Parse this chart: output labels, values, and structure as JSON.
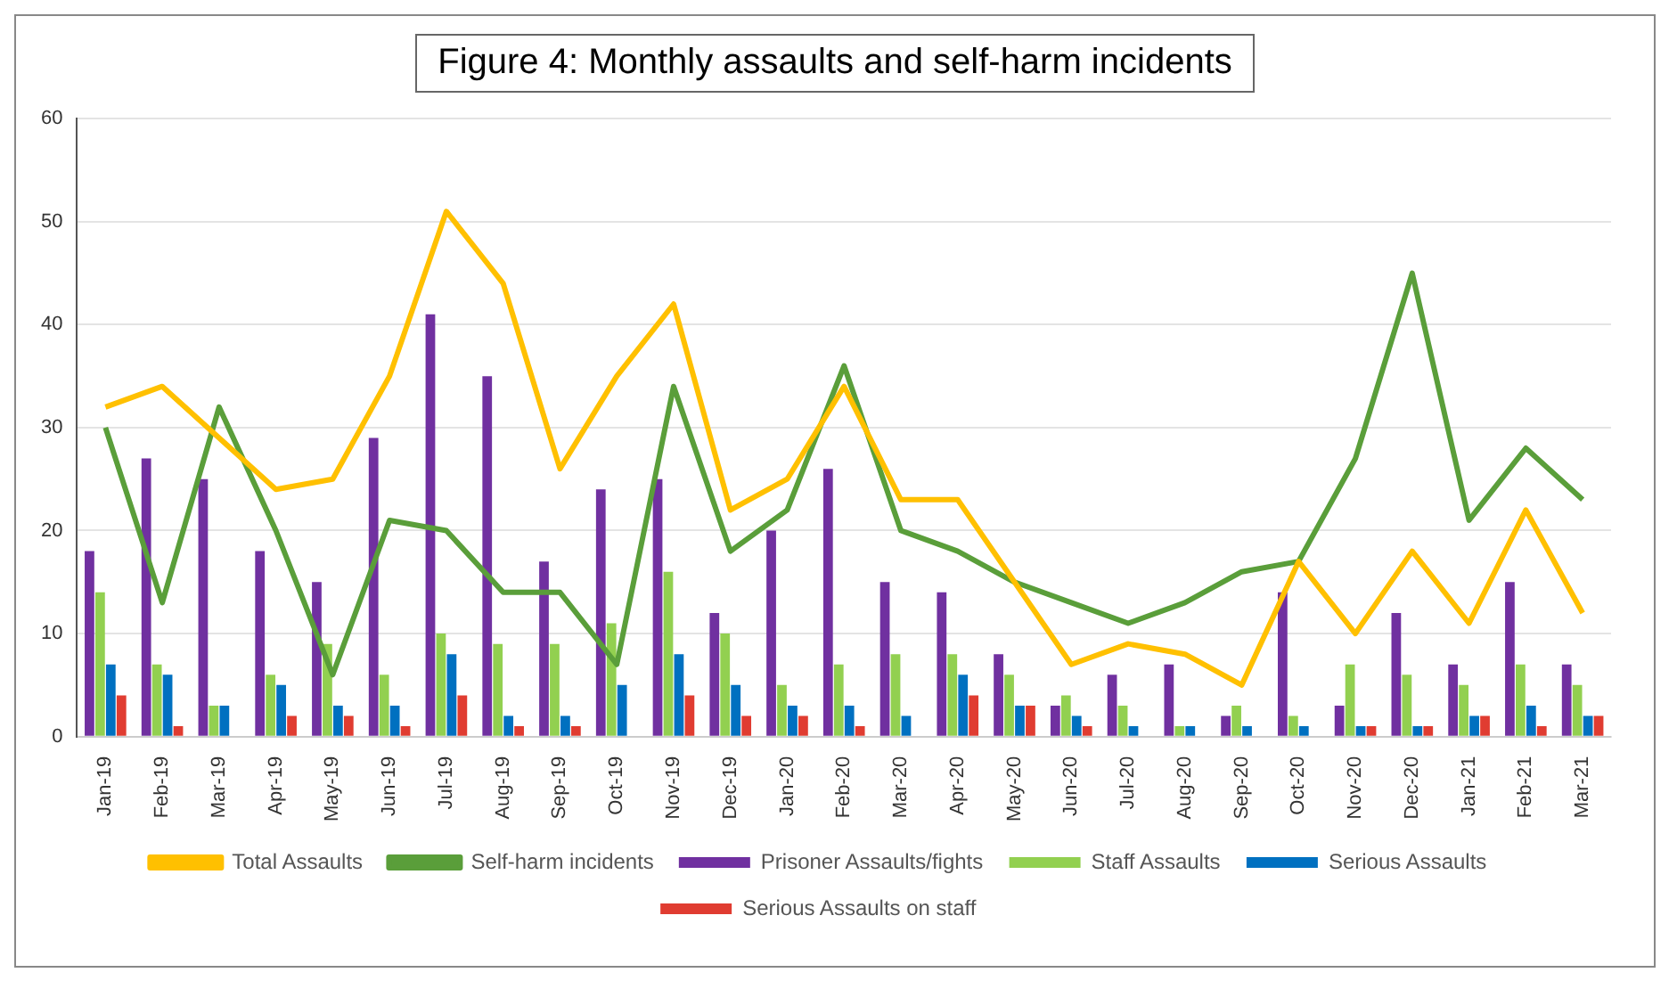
{
  "chart_data": {
    "type": "bar",
    "title": "Figure 4: Monthly assaults and self-harm incidents",
    "categories": [
      "Jan-19",
      "Feb-19",
      "Mar-19",
      "Apr-19",
      "May-19",
      "Jun-19",
      "Jul-19",
      "Aug-19",
      "Sep-19",
      "Oct-19",
      "Nov-19",
      "Dec-19",
      "Jan-20",
      "Feb-20",
      "Mar-20",
      "Apr-20",
      "May-20",
      "Jun-20",
      "Jul-20",
      "Aug-20",
      "Sep-20",
      "Oct-20",
      "Nov-20",
      "Dec-20",
      "Jan-21",
      "Feb-21",
      "Mar-21"
    ],
    "series": [
      {
        "name": "Prisoner Assaults/fights",
        "color": "#7030a0",
        "values": [
          18,
          27,
          25,
          18,
          15,
          29,
          41,
          35,
          17,
          24,
          25,
          12,
          20,
          26,
          15,
          14,
          8,
          3,
          6,
          7,
          2,
          14,
          3,
          12,
          7,
          15,
          7
        ]
      },
      {
        "name": "Staff Assaults",
        "color": "#92d050",
        "values": [
          14,
          7,
          3,
          6,
          9,
          6,
          10,
          9,
          9,
          11,
          16,
          10,
          5,
          7,
          8,
          8,
          6,
          4,
          3,
          1,
          3,
          2,
          7,
          6,
          5,
          7,
          5
        ]
      },
      {
        "name": "Serious Assaults",
        "color": "#0070c0",
        "values": [
          7,
          6,
          3,
          5,
          3,
          3,
          8,
          2,
          2,
          5,
          8,
          5,
          3,
          3,
          2,
          6,
          3,
          2,
          1,
          1,
          1,
          1,
          1,
          1,
          2,
          3,
          2
        ]
      },
      {
        "name": "Serious Assaults on staff",
        "color": "#e03c31",
        "values": [
          4,
          1,
          0,
          2,
          2,
          1,
          4,
          1,
          1,
          0,
          4,
          2,
          2,
          1,
          0,
          4,
          3,
          1,
          0,
          0,
          0,
          0,
          1,
          1,
          2,
          1,
          2
        ]
      },
      {
        "name": "Total Assaults",
        "type": "line",
        "color": "#ffc000",
        "values": [
          32,
          34,
          29,
          24,
          25,
          35,
          51,
          44,
          26,
          35,
          42,
          22,
          25,
          34,
          23,
          23,
          15,
          7,
          9,
          8,
          5,
          17,
          10,
          18,
          11,
          22,
          12
        ]
      },
      {
        "name": "Self-harm incidents",
        "type": "line",
        "color": "#5a9e3a",
        "values": [
          30,
          13,
          32,
          20,
          6,
          21,
          20,
          14,
          14,
          7,
          34,
          18,
          22,
          36,
          20,
          18,
          15,
          13,
          11,
          13,
          16,
          17,
          27,
          45,
          21,
          28,
          23
        ]
      }
    ],
    "ylim": [
      0,
      60
    ],
    "yticks": [
      0,
      10,
      20,
      30,
      40,
      50,
      60
    ],
    "grid": "y",
    "legend": "bottom"
  }
}
